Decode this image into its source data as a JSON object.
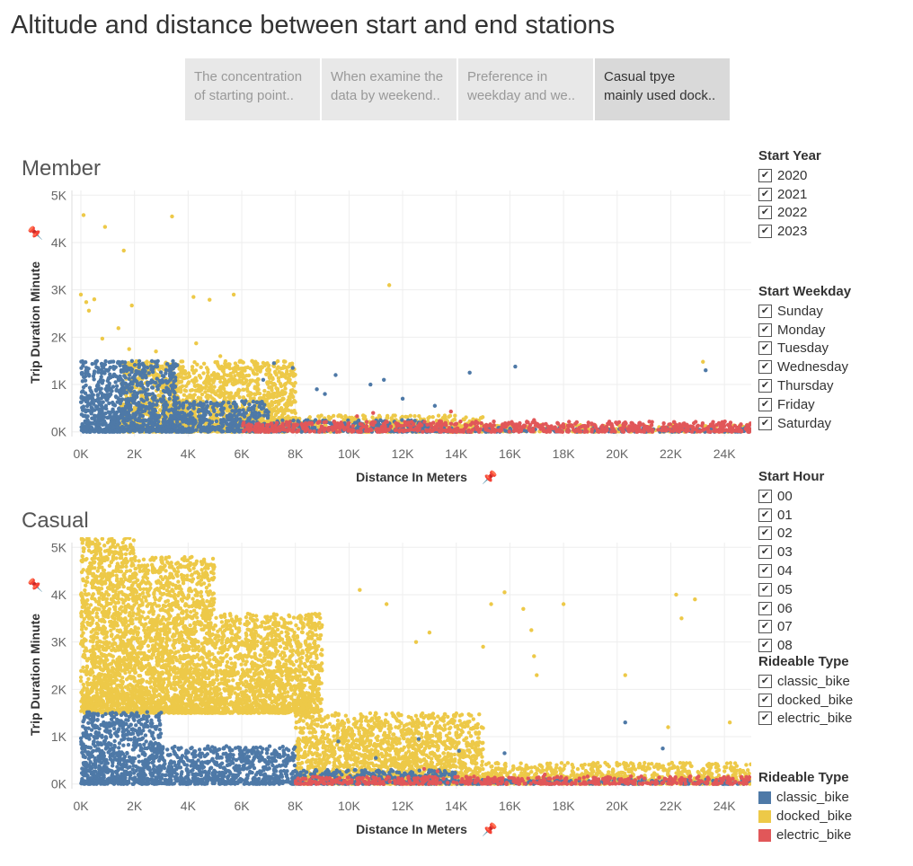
{
  "page": {
    "title": "Altitude and distance between start and end stations"
  },
  "tabs": [
    {
      "line1": "The concentration",
      "line2": "of starting point..",
      "active": false
    },
    {
      "line1": "When examine the",
      "line2": "data by weekend..",
      "active": false
    },
    {
      "line1": "Preference in",
      "line2": "weekday and we..",
      "active": false
    },
    {
      "line1": "Casual tpye",
      "line2": "mainly used dock..",
      "active": true
    }
  ],
  "filters": {
    "start_year": {
      "title": "Start Year",
      "items": [
        "2020",
        "2021",
        "2022",
        "2023"
      ]
    },
    "start_weekday": {
      "title": "Start Weekday",
      "items": [
        "Sunday",
        "Monday",
        "Tuesday",
        "Wednesday",
        "Thursday",
        "Friday",
        "Saturday"
      ]
    },
    "start_hour": {
      "title": "Start Hour",
      "items": [
        "00",
        "01",
        "02",
        "03",
        "04",
        "05",
        "06",
        "07",
        "08"
      ]
    },
    "rideable_type": {
      "title": "Rideable Type",
      "items": [
        "classic_bike",
        "docked_bike",
        "electric_bike"
      ]
    },
    "check_glyph": "✔"
  },
  "legend": {
    "title": "Rideable Type",
    "items": [
      {
        "label": "classic_bike",
        "color": "#4e79a7"
      },
      {
        "label": "docked_bike",
        "color": "#edc948"
      },
      {
        "label": "electric_bike",
        "color": "#e15759"
      }
    ]
  },
  "chart_data": [
    {
      "type": "scatter",
      "title": "Member",
      "xlabel": "Distance In Meters",
      "ylabel": "Trip Duration Minute",
      "xlim": [
        0,
        25000
      ],
      "ylim": [
        -100,
        5100
      ],
      "x_ticks": [
        0,
        2000,
        4000,
        6000,
        8000,
        10000,
        12000,
        14000,
        16000,
        18000,
        20000,
        22000,
        24000
      ],
      "x_tick_labels": [
        "0K",
        "2K",
        "4K",
        "6K",
        "8K",
        "10K",
        "12K",
        "14K",
        "16K",
        "18K",
        "20K",
        "22K",
        "24K"
      ],
      "y_ticks": [
        0,
        1000,
        2000,
        3000,
        4000,
        5000
      ],
      "y_tick_labels": [
        "0K",
        "1K",
        "2K",
        "3K",
        "4K",
        "5K"
      ],
      "grid": true,
      "series": [
        {
          "name": "classic_bike",
          "color": "#4e79a7",
          "points": [
            [
              14500,
              1250
            ],
            [
              16200,
              1380
            ],
            [
              23300,
              1300
            ],
            [
              11300,
              1100
            ],
            [
              10800,
              1000
            ],
            [
              9500,
              1200
            ],
            [
              8800,
              900
            ],
            [
              12000,
              700
            ],
            [
              13200,
              550
            ],
            [
              7900,
              1350
            ],
            [
              6800,
              1100
            ],
            [
              9100,
              800
            ],
            [
              7200,
              1450
            ]
          ],
          "cloud": [
            [
              0,
              3600,
              0,
              1500
            ],
            [
              3600,
              7000,
              0,
              650
            ],
            [
              7000,
              13000,
              0,
              250
            ],
            [
              13000,
              25000,
              0,
              90
            ]
          ]
        },
        {
          "name": "docked_bike",
          "color": "#edc948",
          "points": [
            [
              100,
              4580
            ],
            [
              900,
              4330
            ],
            [
              3400,
              4550
            ],
            [
              1600,
              3830
            ],
            [
              200,
              2740
            ],
            [
              500,
              2800
            ],
            [
              300,
              2560
            ],
            [
              1900,
              2670
            ],
            [
              4200,
              2850
            ],
            [
              4800,
              2790
            ],
            [
              5700,
              2900
            ],
            [
              11500,
              3100
            ],
            [
              0,
              2900
            ],
            [
              1400,
              2190
            ],
            [
              800,
              1970
            ],
            [
              2800,
              1700
            ],
            [
              4300,
              1870
            ],
            [
              23200,
              1480
            ],
            [
              5200,
              1600
            ],
            [
              1800,
              1750
            ]
          ],
          "cloud": [
            [
              1500,
              8000,
              0,
              1500
            ],
            [
              8000,
              15000,
              0,
              350
            ],
            [
              15000,
              25000,
              0,
              150
            ]
          ]
        },
        {
          "name": "electric_bike",
          "color": "#e15759",
          "points": [
            [
              10300,
              330
            ],
            [
              10900,
              400
            ],
            [
              13800,
              430
            ],
            [
              16900,
              250
            ],
            [
              20300,
              200
            ],
            [
              22600,
              150
            ]
          ],
          "cloud": [
            [
              6000,
              25000,
              0,
              220
            ]
          ]
        }
      ]
    },
    {
      "type": "scatter",
      "title": "Casual",
      "xlabel": "Distance In Meters",
      "ylabel": "Trip Duration Minute",
      "xlim": [
        0,
        25000
      ],
      "ylim": [
        -100,
        5100
      ],
      "x_ticks": [
        0,
        2000,
        4000,
        6000,
        8000,
        10000,
        12000,
        14000,
        16000,
        18000,
        20000,
        22000,
        24000
      ],
      "x_tick_labels": [
        "0K",
        "2K",
        "4K",
        "6K",
        "8K",
        "10K",
        "12K",
        "14K",
        "16K",
        "18K",
        "20K",
        "22K",
        "24K"
      ],
      "y_ticks": [
        0,
        1000,
        2000,
        3000,
        4000,
        5000
      ],
      "y_tick_labels": [
        "0K",
        "1K",
        "2K",
        "3K",
        "4K",
        "5K"
      ],
      "grid": true,
      "series": [
        {
          "name": "classic_bike",
          "color": "#4e79a7",
          "points": [
            [
              20300,
              1300
            ],
            [
              21700,
              750
            ],
            [
              12600,
              950
            ],
            [
              15800,
              650
            ],
            [
              14100,
              700
            ],
            [
              11000,
              550
            ],
            [
              9600,
              900
            ]
          ],
          "cloud": [
            [
              0,
              3000,
              0,
              1520
            ],
            [
              3000,
              8000,
              0,
              800
            ],
            [
              8000,
              14000,
              0,
              300
            ],
            [
              14000,
              25000,
              0,
              100
            ]
          ]
        },
        {
          "name": "docked_bike",
          "color": "#edc948",
          "points": [
            [
              10400,
              4100
            ],
            [
              11400,
              3800
            ],
            [
              13000,
              3200
            ],
            [
              12500,
              3000
            ],
            [
              15800,
              4050
            ],
            [
              15300,
              3800
            ],
            [
              16500,
              3700
            ],
            [
              18000,
              3800
            ],
            [
              22200,
              4000
            ],
            [
              22400,
              3500
            ],
            [
              22900,
              3900
            ],
            [
              16800,
              3250
            ],
            [
              16900,
              2700
            ],
            [
              15000,
              2900
            ],
            [
              17000,
              2300
            ],
            [
              20300,
              2300
            ],
            [
              24200,
              1300
            ],
            [
              21900,
              1200
            ]
          ],
          "cloud": [
            [
              0,
              2000,
              1500,
              5200
            ],
            [
              2000,
              5000,
              1500,
              4800
            ],
            [
              5000,
              9000,
              1500,
              3600
            ],
            [
              8000,
              15000,
              0,
              1500
            ],
            [
              15000,
              25000,
              0,
              450
            ]
          ]
        },
        {
          "name": "electric_bike",
          "color": "#e15759",
          "points": [
            [
              13300,
              270
            ],
            [
              12800,
              320
            ],
            [
              17300,
              200
            ],
            [
              20900,
              160
            ],
            [
              22700,
              140
            ]
          ],
          "cloud": [
            [
              8000,
              25000,
              0,
              160
            ]
          ]
        }
      ]
    }
  ]
}
